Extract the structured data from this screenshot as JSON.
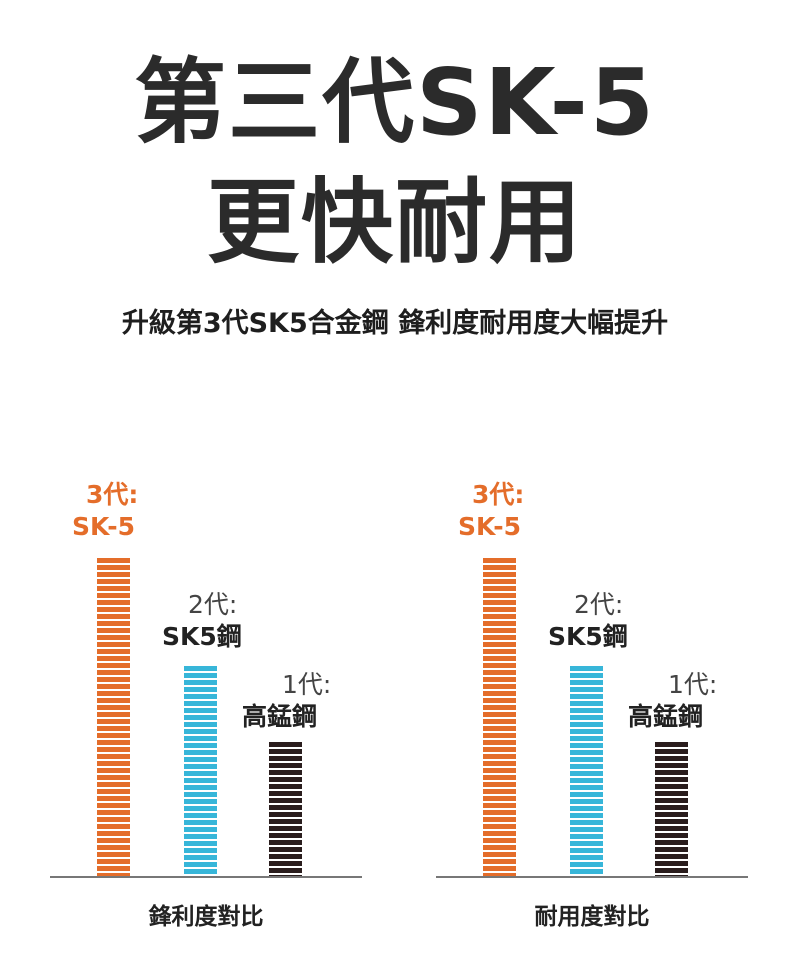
{
  "headline": {
    "line1": "第三代SK-5",
    "line2": "更快耐用"
  },
  "subtitle": "升級第3代SK5合金鋼 鋒利度耐用度大幅提升",
  "colors": {
    "gen3": "#e46d2a",
    "gen2": "#37b6d9",
    "gen1": "#2a1d1d"
  },
  "charts": [
    {
      "caption": "鋒利度對比",
      "bars": [
        {
          "gen_label": "3代:",
          "material": "SK-5",
          "level": 1.0
        },
        {
          "gen_label": "2代:",
          "material": "SK5鋼",
          "level": 0.66
        },
        {
          "gen_label": "1代:",
          "material": "高錳鋼",
          "level": 0.42
        }
      ]
    },
    {
      "caption": "耐用度對比",
      "bars": [
        {
          "gen_label": "3代:",
          "material": "SK-5",
          "level": 1.0
        },
        {
          "gen_label": "2代:",
          "material": "SK5鋼",
          "level": 0.66
        },
        {
          "gen_label": "1代:",
          "material": "高錳鋼",
          "level": 0.42
        }
      ]
    }
  ]
}
